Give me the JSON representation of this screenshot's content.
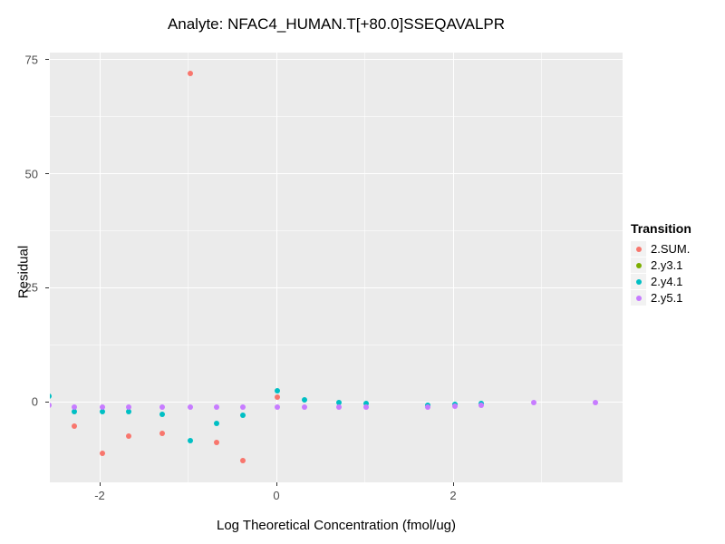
{
  "title": "Analyte: NFAC4_HUMAN.T[+80.0]SSEQAVALPR",
  "x_axis": {
    "title": "Log Theoretical Concentration (fmol/ug)"
  },
  "y_axis": {
    "title": "Residual"
  },
  "legend": {
    "title": "Transition",
    "entries": [
      {
        "label": "2.SUM.",
        "color": "#F8766D"
      },
      {
        "label": "2.y3.1",
        "color": "#7CAE00"
      },
      {
        "label": "2.y4.1",
        "color": "#00BFC4"
      },
      {
        "label": "2.y5.1",
        "color": "#C77CFF"
      }
    ]
  },
  "colors": {
    "panel_background": "#EBEBEB",
    "grid_major": "#FFFFFF",
    "legend_key_background": "#F2F2F2",
    "tick_label": "#4D4D4D"
  },
  "chart_data": {
    "type": "scatter",
    "title": "Analyte: NFAC4_HUMAN.T[+80.0]SSEQAVALPR",
    "xlabel": "Log Theoretical Concentration (fmol/ug)",
    "ylabel": "Residual",
    "xlim": [
      -2.56,
      3.92
    ],
    "ylim": [
      -17.7,
      76.6
    ],
    "x_ticks": [
      -2,
      0,
      2
    ],
    "x_tick_labels": [
      "-2",
      "0",
      "2"
    ],
    "x_minor_ticks": [
      -1,
      1,
      3
    ],
    "y_ticks": [
      75,
      50,
      25,
      0
    ],
    "y_tick_labels": [
      "75",
      "50",
      "25",
      "0"
    ],
    "y_minor_ticks": [
      12.5,
      37.5,
      62.5
    ],
    "grid": true,
    "legend_position": "right",
    "legend_title": "Transition",
    "series": [
      {
        "name": "2.SUM.",
        "color": "#F8766D",
        "points": [
          [
            -2.29,
            -5.3
          ],
          [
            -1.97,
            -11.4
          ],
          [
            -1.67,
            -7.6
          ],
          [
            -1.29,
            -7.0
          ],
          [
            -0.97,
            72.0
          ],
          [
            -0.68,
            -9.0
          ],
          [
            -0.38,
            -12.9
          ],
          [
            0.01,
            1.0
          ]
        ]
      },
      {
        "name": "2.y3.1",
        "color": "#7CAE00",
        "points": []
      },
      {
        "name": "2.y4.1",
        "color": "#00BFC4",
        "points": [
          [
            -2.57,
            1.2
          ],
          [
            -2.29,
            -2.1
          ],
          [
            -1.97,
            -2.2
          ],
          [
            -1.67,
            -2.2
          ],
          [
            -1.29,
            -2.8
          ],
          [
            -0.97,
            -8.6
          ],
          [
            -0.68,
            -4.8
          ],
          [
            -0.38,
            -3.0
          ],
          [
            0.01,
            2.4
          ],
          [
            0.32,
            0.4
          ],
          [
            0.71,
            -0.2
          ],
          [
            1.02,
            -0.4
          ],
          [
            1.71,
            -0.7
          ],
          [
            2.02,
            -0.6
          ],
          [
            2.32,
            -0.3
          ]
        ]
      },
      {
        "name": "2.y5.1",
        "color": "#C77CFF",
        "points": [
          [
            -2.57,
            -0.8
          ],
          [
            -2.29,
            -1.1
          ],
          [
            -1.97,
            -1.1
          ],
          [
            -1.67,
            -1.1
          ],
          [
            -1.29,
            -1.1
          ],
          [
            -0.97,
            -1.1
          ],
          [
            -0.68,
            -1.1
          ],
          [
            -0.38,
            -1.1
          ],
          [
            0.01,
            -1.1
          ],
          [
            0.32,
            -1.1
          ],
          [
            0.71,
            -1.2
          ],
          [
            1.02,
            -1.2
          ],
          [
            1.71,
            -1.1
          ],
          [
            2.02,
            -1.0
          ],
          [
            2.32,
            -0.8
          ],
          [
            2.91,
            -0.1
          ],
          [
            3.61,
            -0.2
          ]
        ]
      }
    ]
  }
}
